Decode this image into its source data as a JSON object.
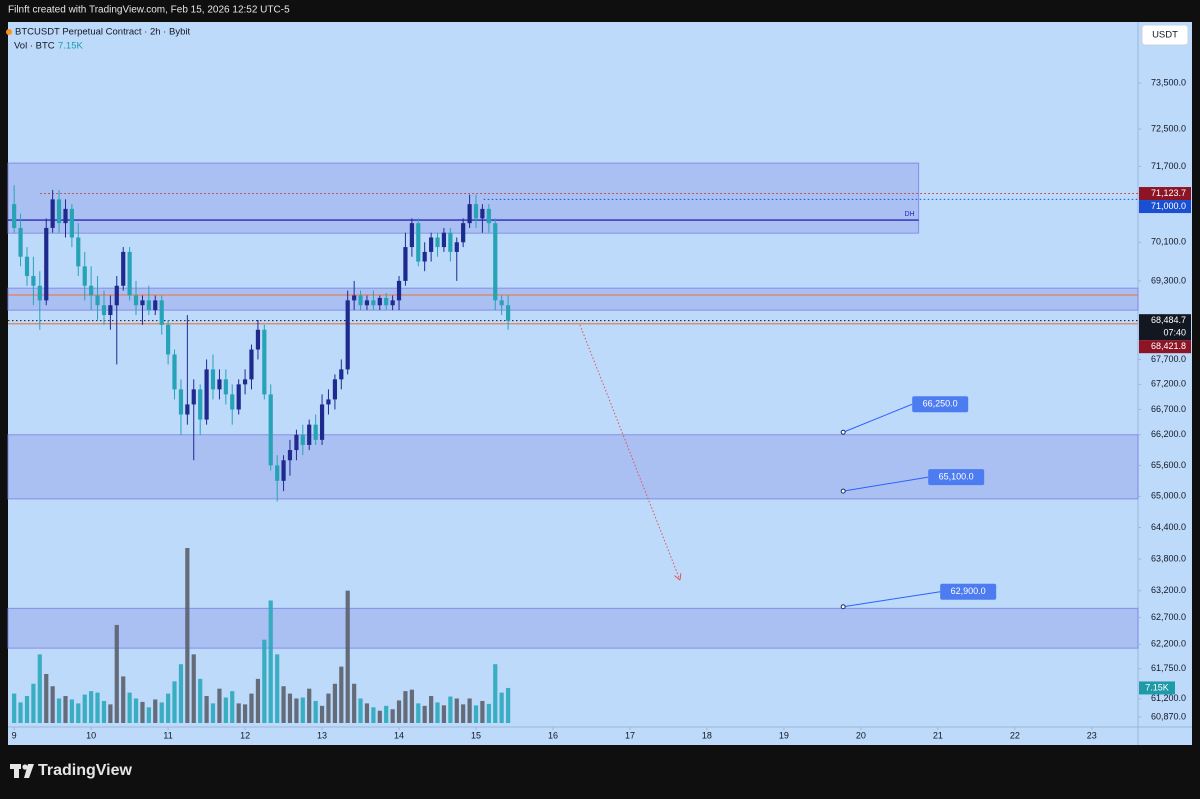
{
  "header": {
    "text": "Filnft created with TradingView.com, Feb 15, 2026 12:52 UTC-5"
  },
  "chart_data": {
    "type": "candlestick",
    "title": "BTCUSDT Perpetual Contract · 2h · Bybit",
    "currency": "USDT",
    "up_color": "#1f2a8f",
    "down_color": "#27a3b8",
    "x": [
      9,
      9.083,
      9.167,
      9.25,
      9.333,
      9.417,
      9.5,
      9.583,
      9.667,
      9.75,
      9.833,
      9.917,
      10,
      10.083,
      10.167,
      10.25,
      10.333,
      10.417,
      10.5,
      10.583,
      10.667,
      10.75,
      10.833,
      10.917,
      11,
      11.083,
      11.167,
      11.25,
      11.333,
      11.417,
      11.5,
      11.583,
      11.667,
      11.75,
      11.833,
      11.917,
      12,
      12.083,
      12.167,
      12.25,
      12.333,
      12.417,
      12.5,
      12.583,
      12.667,
      12.75,
      12.833,
      12.917,
      13,
      13.083,
      13.167,
      13.25,
      13.333,
      13.417,
      13.5,
      13.583,
      13.667,
      13.75,
      13.833,
      13.917,
      14,
      14.083,
      14.167,
      14.25,
      14.333,
      14.417,
      14.5,
      14.583,
      14.667,
      14.75,
      14.833,
      14.917,
      15,
      15.083,
      15.167,
      15.25,
      15.333,
      15.417
    ],
    "open": [
      70900,
      70400,
      69800,
      69400,
      69200,
      68900,
      70400,
      71000,
      70500,
      70800,
      70200,
      69600,
      69200,
      69000,
      68800,
      68600,
      68800,
      69200,
      69900,
      69000,
      68800,
      68900,
      68700,
      68900,
      68400,
      67800,
      67100,
      66600,
      66800,
      67100,
      66500,
      67500,
      67100,
      67300,
      67000,
      66700,
      67200,
      67300,
      67900,
      68300,
      67000,
      65600,
      65300,
      65700,
      65900,
      66200,
      66000,
      66400,
      66100,
      66800,
      66900,
      67300,
      67500,
      68900,
      69000,
      68800,
      68900,
      68800,
      68950,
      68800,
      68900,
      69300,
      70000,
      70500,
      69700,
      69900,
      70200,
      70000,
      70300,
      69900,
      70100,
      70500,
      70900,
      70600,
      70800,
      70500,
      68900,
      68800
    ],
    "high": [
      71300,
      70700,
      70000,
      69800,
      69500,
      70600,
      71200,
      71200,
      71000,
      70900,
      70500,
      69900,
      69600,
      69400,
      69100,
      69000,
      69400,
      70000,
      70000,
      69300,
      69000,
      69200,
      69000,
      69000,
      68500,
      67900,
      67300,
      68600,
      67300,
      67200,
      67700,
      67800,
      67500,
      67500,
      67200,
      67300,
      67500,
      68000,
      68500,
      68400,
      67200,
      65800,
      65800,
      66100,
      66300,
      66400,
      66500,
      66600,
      67000,
      67100,
      67400,
      67700,
      69100,
      69300,
      69100,
      69000,
      69100,
      69000,
      69050,
      69000,
      69400,
      70300,
      70600,
      70600,
      70100,
      70300,
      70300,
      70400,
      70400,
      70200,
      70600,
      71100,
      71100,
      70900,
      70900,
      70600,
      69000,
      69000
    ],
    "low": [
      70300,
      69600,
      69200,
      68800,
      68300,
      68800,
      70300,
      70300,
      70200,
      70000,
      69400,
      68900,
      68700,
      68500,
      68400,
      68300,
      67600,
      69100,
      68900,
      68600,
      68400,
      68600,
      68600,
      68200,
      67600,
      66900,
      66200,
      66400,
      65700,
      66200,
      66400,
      66900,
      66900,
      66800,
      66400,
      66600,
      67000,
      67100,
      67700,
      66900,
      65500,
      64900,
      65100,
      65400,
      65700,
      65800,
      65900,
      66000,
      66000,
      66600,
      66700,
      67100,
      67400,
      68700,
      68700,
      68700,
      68700,
      68700,
      68700,
      68700,
      68700,
      69200,
      69800,
      69600,
      69500,
      69700,
      69800,
      69900,
      69700,
      69300,
      70000,
      70400,
      70400,
      70300,
      70300,
      68700,
      68600,
      68300
    ],
    "close": [
      70400,
      69800,
      69400,
      69200,
      68900,
      70400,
      71000,
      70500,
      70800,
      70200,
      69600,
      69200,
      69000,
      68800,
      68600,
      68800,
      69200,
      69900,
      69000,
      68800,
      68900,
      68700,
      68900,
      68400,
      67800,
      67100,
      66600,
      66800,
      67100,
      66500,
      67500,
      67100,
      67300,
      67000,
      66700,
      67200,
      67300,
      67900,
      68300,
      67000,
      65600,
      65300,
      65700,
      65900,
      66200,
      66000,
      66400,
      66100,
      66800,
      66900,
      67300,
      67500,
      68900,
      69000,
      68800,
      68900,
      68800,
      68950,
      68800,
      68900,
      69300,
      70000,
      70500,
      69700,
      69900,
      70200,
      70000,
      70300,
      69900,
      70100,
      70500,
      70900,
      70600,
      70800,
      70500,
      68900,
      68800,
      68484.7
    ],
    "volume": {
      "name": "Vol · BTC",
      "up_color": "#5a5f6b",
      "down_color": "#2aa9bd",
      "last_label": "7.15K",
      "values": [
        6000,
        4200,
        5500,
        8000,
        14000,
        10000,
        7500,
        5000,
        5500,
        4800,
        4000,
        5800,
        6500,
        6200,
        4500,
        3800,
        20000,
        9500,
        6200,
        5000,
        4300,
        3200,
        4800,
        4200,
        6000,
        8500,
        12000,
        35700,
        14000,
        9000,
        5500,
        4000,
        7000,
        5200,
        6500,
        4000,
        3800,
        6000,
        9000,
        17000,
        25000,
        14000,
        7500,
        6000,
        5000,
        5200,
        7000,
        4500,
        3500,
        6000,
        8000,
        11500,
        27000,
        8000,
        5000,
        4000,
        3200,
        2500,
        3500,
        2800,
        4600,
        6500,
        6800,
        4000,
        3500,
        5500,
        4200,
        3600,
        5400,
        5000,
        3800,
        5000,
        3600,
        4500,
        3900,
        12000,
        6200,
        7150
      ]
    },
    "xlim": [
      8.92,
      23.6
    ],
    "xticks": [
      9,
      10,
      11,
      12,
      13,
      14,
      15,
      16,
      17,
      18,
      19,
      20,
      21,
      22,
      23
    ],
    "ylim": [
      60690,
      74846
    ],
    "log_scale": true,
    "yticks": [
      {
        "value": 73500,
        "label": "73,500.0"
      },
      {
        "value": 72500,
        "label": "72,500.0"
      },
      {
        "value": 71700,
        "label": "71,700.0"
      },
      {
        "value": 70100,
        "label": "70,100.0"
      },
      {
        "value": 69300,
        "label": "69,300.0"
      },
      {
        "value": 67700,
        "label": "67,700.0"
      },
      {
        "value": 67200,
        "label": "67,200.0"
      },
      {
        "value": 66700,
        "label": "66,700.0"
      },
      {
        "value": 66200,
        "label": "66,200.0"
      },
      {
        "value": 65600,
        "label": "65,600.0"
      },
      {
        "value": 65000,
        "label": "65,000.0"
      },
      {
        "value": 64400,
        "label": "64,400.0"
      },
      {
        "value": 63800,
        "label": "63,800.0"
      },
      {
        "value": 63200,
        "label": "63,200.0"
      },
      {
        "value": 62700,
        "label": "62,700.0"
      },
      {
        "value": 62200,
        "label": "62,200.0"
      },
      {
        "value": 61750,
        "label": "61,750.0"
      },
      {
        "value": 61200,
        "label": "61,200.0"
      },
      {
        "value": 60870,
        "label": "60,870.0"
      }
    ],
    "price_tags": [
      {
        "value": 71123.7,
        "label": "71,123.7",
        "color": "#8c1424"
      },
      {
        "value": 71000,
        "label": "71,000.0",
        "color": "#1b4fd1"
      },
      {
        "value": 68484.7,
        "label": "68,484.7",
        "countdown": "07:40",
        "color": "#131722"
      },
      {
        "value": 68421.8,
        "label": "68,421.8",
        "color": "#8c1424"
      }
    ],
    "zones": [
      {
        "from": 70290,
        "to": 71770,
        "x_end": 20.75,
        "color": "#7b7fe0"
      },
      {
        "from": 68700,
        "to": 69150,
        "color": "#7b7fe0"
      },
      {
        "from": 64950,
        "to": 66200,
        "color": "#7b7fe0"
      },
      {
        "from": 62130,
        "to": 62870,
        "color": "#7b7fe0"
      }
    ],
    "lines": [
      {
        "value": 70565,
        "x_end": 20.75,
        "color": "#2f27b8",
        "style": "solid",
        "label": "DH"
      },
      {
        "value": 71123.7,
        "x_start": 9.34,
        "color": "#c0392b",
        "style": "dotted"
      },
      {
        "value": 71000,
        "x_start": 15.1,
        "color": "#1b4fd1",
        "style": "dotted"
      },
      {
        "value": 69010,
        "color": "#e0805a",
        "style": "solid"
      },
      {
        "value": 68484.7,
        "color": "#131722",
        "style": "dotted"
      },
      {
        "value": 68421.8,
        "color": "#e0805a",
        "style": "solid"
      }
    ],
    "callouts": [
      {
        "x": 19.77,
        "value": 66250,
        "label": "66,250.0"
      },
      {
        "x": 19.77,
        "value": 65100,
        "label": "65,100.0"
      },
      {
        "x": 19.77,
        "value": 62900,
        "label": "62,900.0"
      }
    ],
    "arrow": {
      "from_x": 16.35,
      "from_price": 68400,
      "to_x": 17.65,
      "to_price": 63400,
      "color": "#e25555"
    }
  },
  "footer": {
    "brand": "TradingView"
  }
}
